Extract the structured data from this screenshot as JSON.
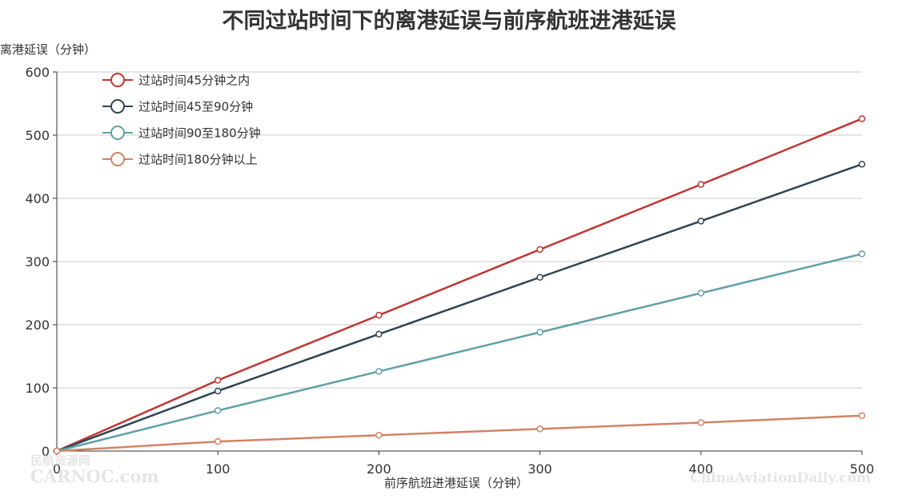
{
  "chart_data": {
    "type": "line",
    "title": "不同过站时间下的离港延误与前序航班进港延误",
    "xlabel": "前序航班进港延误（分钟）",
    "ylabel": "离港延误（分钟）",
    "x": [
      0,
      100,
      200,
      300,
      400,
      500
    ],
    "xlim": [
      0,
      500
    ],
    "ylim": [
      0,
      600
    ],
    "xticks": [
      "0",
      "100",
      "200",
      "300",
      "400",
      "500"
    ],
    "yticks": [
      "0",
      "100",
      "200",
      "300",
      "400",
      "500",
      "600"
    ],
    "grid": "horizontal",
    "legend_position": "top-left",
    "series": [
      {
        "name": "过站时间45分钟之内",
        "color": "#c23531",
        "values": [
          0,
          112,
          215,
          319,
          422,
          526
        ]
      },
      {
        "name": "过站时间45至90分钟",
        "color": "#2f4554",
        "values": [
          0,
          95,
          185,
          275,
          364,
          454
        ]
      },
      {
        "name": "过站时间90至180分钟",
        "color": "#61a0a8",
        "values": [
          0,
          64,
          126,
          188,
          250,
          312
        ]
      },
      {
        "name": "过站时间180分钟以上",
        "color": "#d48265",
        "values": [
          0,
          15,
          25,
          35,
          45,
          56
        ]
      }
    ]
  },
  "watermark": {
    "left_cn": "民航资源网",
    "left_en": "CARNOC.com",
    "right_en": "ChinaAviationDaily.com"
  }
}
